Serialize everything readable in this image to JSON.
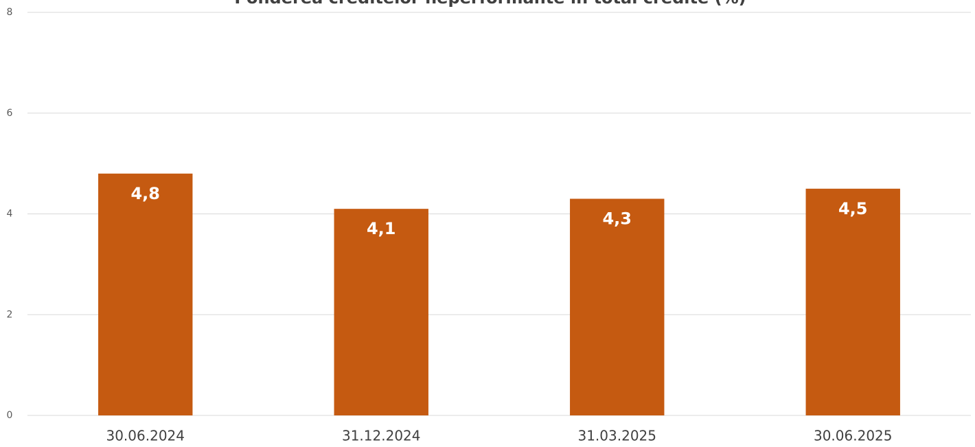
{
  "chart_data": {
    "type": "bar",
    "title": "Ponderea creditelor neperformante în total credite (%)",
    "categories": [
      "30.06.2024",
      "31.12.2024",
      "31.03.2025",
      "30.06.2025"
    ],
    "values": [
      4.8,
      4.1,
      4.3,
      4.5
    ],
    "value_labels": [
      "4,8",
      "4,1",
      "4,3",
      "4,5"
    ],
    "color": "#c55a11",
    "ylim": [
      0,
      8
    ],
    "yticks": [
      0,
      2,
      4,
      6,
      8
    ],
    "grid": true
  }
}
